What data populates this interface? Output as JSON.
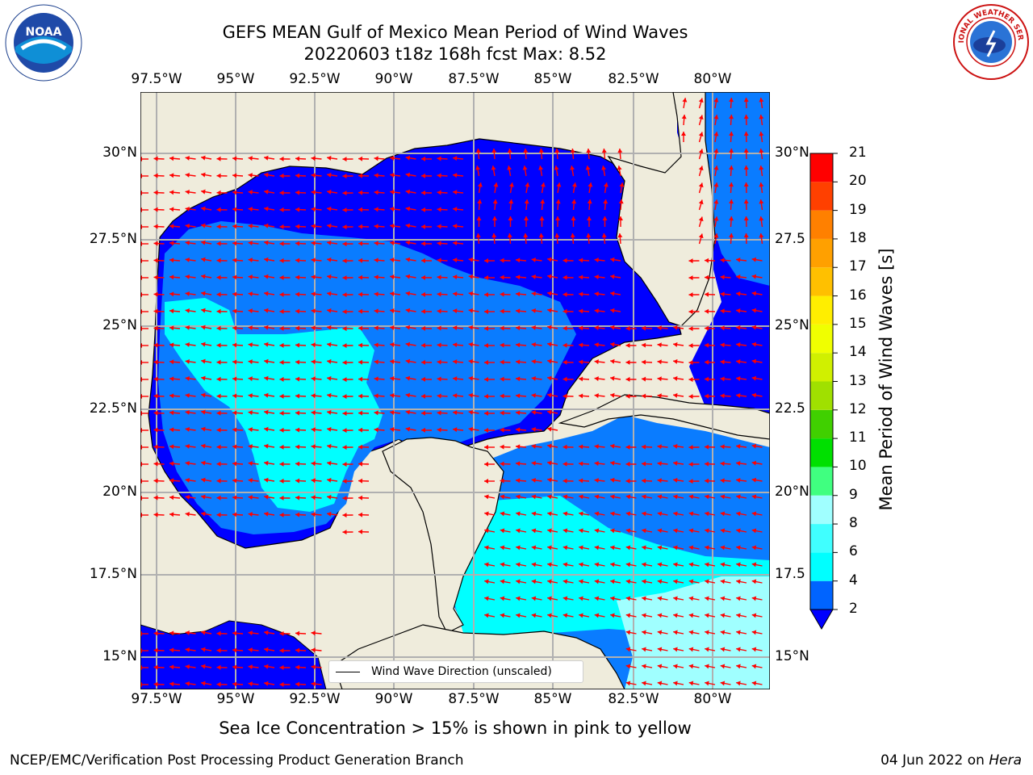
{
  "title_line1": "GEFS MEAN Gulf of Mexico Mean Period of Wind Waves",
  "title_line2": "20220603 t18z 168h fcst   Max: 8.52",
  "lon_labels": [
    "97.5°W",
    "95°W",
    "92.5°W",
    "90°W",
    "87.5°W",
    "85°W",
    "82.5°W",
    "80°W"
  ],
  "lat_labels_left": [
    "30°N",
    "27.5°N",
    "25°N",
    "22.5°N",
    "20°N",
    "17.5°N",
    "15°N"
  ],
  "lat_labels_right": [
    "30°N",
    "27.5",
    "25°N",
    "22.5",
    "20°N",
    "17.5",
    "15°N"
  ],
  "colorbar": {
    "title": "Mean Period of Wind Waves [s]",
    "ticks": [
      "2",
      "4",
      "6",
      "8",
      "9",
      "10",
      "11",
      "12",
      "13",
      "14",
      "15",
      "16",
      "17",
      "18",
      "19",
      "20",
      "21"
    ],
    "colors": [
      "#0064ff",
      "#00ffff",
      "#40ffff",
      "#a0ffff",
      "#40ff80",
      "#00e000",
      "#40d000",
      "#a0e000",
      "#d0f000",
      "#f0ff00",
      "#ffee00",
      "#ffc000",
      "#ffa000",
      "#ff8000",
      "#ff4000",
      "#ff0000"
    ],
    "extend_color": "#0000ff"
  },
  "legend_label": "Wind Wave Direction (unscaled)",
  "note": "Sea Ice Concentration > 15% is shown in pink to yellow",
  "credit": "NCEP/EMC/Verification Post Processing Product Generation Branch",
  "date_prefix": "04 Jun 2022 on",
  "date_machine": "Hera",
  "logos": {
    "noaa_text": "NOAA",
    "nws_text": "NATIONAL WEATHER SERVICE"
  },
  "colors": {
    "land": "#efecdc",
    "deep_blue": "#0000ff",
    "mid_blue": "#0a7cff",
    "cyan": "#00ffff",
    "light_cyan": "#a0ffff",
    "arrow": "#ff0000",
    "grid": "#b0b0b0"
  }
}
